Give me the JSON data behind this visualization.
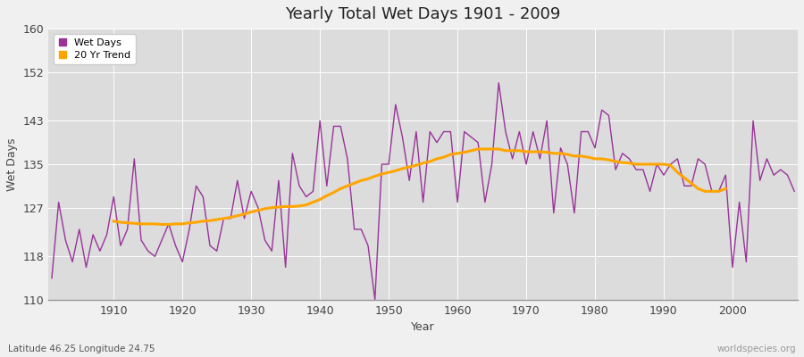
{
  "title": "Yearly Total Wet Days 1901 - 2009",
  "xlabel": "Year",
  "ylabel": "Wet Days",
  "subtitle": "Latitude 46.25 Longitude 24.75",
  "watermark": "worldspecies.org",
  "ylim": [
    110,
    160
  ],
  "yticks": [
    110,
    118,
    127,
    135,
    143,
    152,
    160
  ],
  "xlim": [
    1901,
    2009
  ],
  "xticks": [
    1910,
    1920,
    1930,
    1940,
    1950,
    1960,
    1970,
    1980,
    1990,
    2000
  ],
  "wet_days_color": "#993399",
  "trend_color": "#FFA500",
  "plot_bg_color": "#DCDCDC",
  "fig_bg_color": "#F0F0F0",
  "legend_wet": "Wet Days",
  "legend_trend": "20 Yr Trend",
  "years": [
    1901,
    1902,
    1903,
    1904,
    1905,
    1906,
    1907,
    1908,
    1909,
    1910,
    1911,
    1912,
    1913,
    1914,
    1915,
    1916,
    1917,
    1918,
    1919,
    1920,
    1921,
    1922,
    1923,
    1924,
    1925,
    1926,
    1927,
    1928,
    1929,
    1930,
    1931,
    1932,
    1933,
    1934,
    1935,
    1936,
    1937,
    1938,
    1939,
    1940,
    1941,
    1942,
    1943,
    1944,
    1945,
    1946,
    1947,
    1948,
    1949,
    1950,
    1951,
    1952,
    1953,
    1954,
    1955,
    1956,
    1957,
    1958,
    1959,
    1960,
    1961,
    1962,
    1963,
    1964,
    1965,
    1966,
    1967,
    1968,
    1969,
    1970,
    1971,
    1972,
    1973,
    1974,
    1975,
    1976,
    1977,
    1978,
    1979,
    1980,
    1981,
    1982,
    1983,
    1984,
    1985,
    1986,
    1987,
    1988,
    1989,
    1990,
    1991,
    1992,
    1993,
    1994,
    1995,
    1996,
    1997,
    1998,
    1999,
    2000,
    2001,
    2002,
    2003,
    2004,
    2005,
    2006,
    2007,
    2008,
    2009
  ],
  "wet_days": [
    114,
    128,
    121,
    117,
    123,
    116,
    122,
    119,
    122,
    129,
    120,
    123,
    136,
    121,
    119,
    118,
    121,
    124,
    120,
    117,
    123,
    131,
    129,
    120,
    119,
    125,
    125,
    132,
    125,
    130,
    127,
    121,
    119,
    132,
    116,
    137,
    131,
    129,
    130,
    143,
    131,
    142,
    142,
    136,
    123,
    123,
    120,
    110,
    135,
    135,
    146,
    140,
    132,
    141,
    128,
    141,
    139,
    141,
    141,
    128,
    141,
    140,
    139,
    128,
    135,
    150,
    141,
    136,
    141,
    135,
    141,
    136,
    143,
    126,
    138,
    135,
    126,
    141,
    141,
    138,
    145,
    144,
    134,
    137,
    136,
    134,
    134,
    130,
    135,
    133,
    135,
    136,
    131,
    131,
    136,
    135,
    130,
    130,
    133,
    116,
    128,
    117,
    143,
    132,
    136,
    133,
    134,
    133,
    130
  ],
  "trend": [
    null,
    null,
    null,
    null,
    null,
    null,
    null,
    null,
    null,
    124.5,
    124.3,
    124.2,
    124.1,
    124.0,
    124.0,
    124.0,
    123.9,
    123.9,
    124.0,
    124.0,
    124.2,
    124.3,
    124.5,
    124.6,
    124.8,
    125.0,
    125.2,
    125.5,
    125.8,
    126.2,
    126.5,
    126.8,
    127.0,
    127.1,
    127.2,
    127.2,
    127.3,
    127.5,
    128.0,
    128.5,
    129.2,
    129.8,
    130.5,
    131.0,
    131.5,
    132.0,
    132.3,
    132.8,
    133.2,
    133.5,
    133.8,
    134.2,
    134.5,
    134.8,
    135.2,
    135.5,
    136.0,
    136.3,
    136.8,
    137.0,
    137.2,
    137.5,
    137.8,
    137.8,
    137.8,
    137.8,
    137.5,
    137.5,
    137.5,
    137.3,
    137.3,
    137.3,
    137.2,
    137.0,
    137.0,
    136.8,
    136.5,
    136.5,
    136.3,
    136.0,
    136.0,
    135.8,
    135.5,
    135.3,
    135.2,
    135.0,
    135.0,
    135.0,
    135.0,
    135.0,
    134.8,
    133.5,
    132.5,
    131.5,
    130.5,
    130.0,
    130.0,
    130.0,
    130.5
  ]
}
